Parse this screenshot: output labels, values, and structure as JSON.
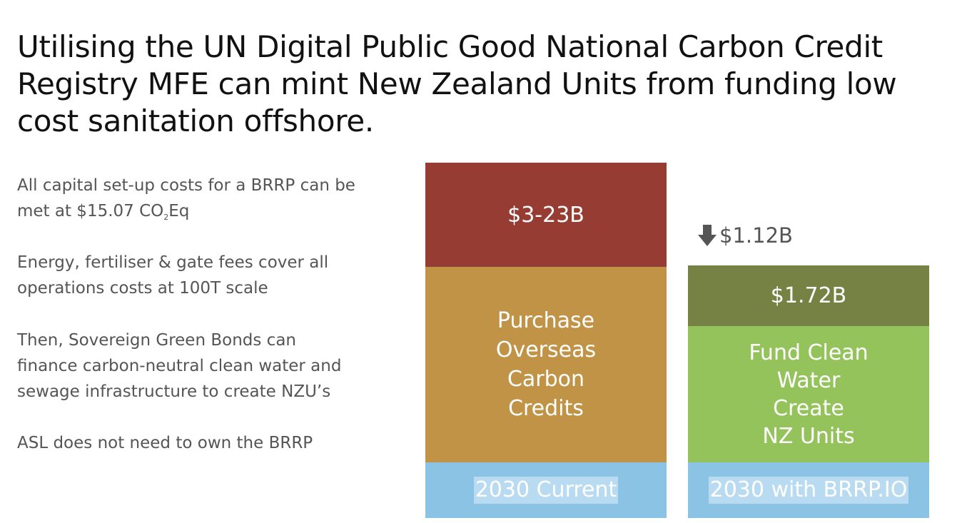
{
  "title": {
    "lines": [
      "Utilising the UN Digital Public Good National Carbon Credit",
      "Registry MFE can mint New Zealand Units from funding low",
      "cost sanitation offshore."
    ]
  },
  "points": {
    "p1": {
      "line1": "All capital set-up costs for a BRRP can be",
      "line2_pre": "met at $15.07 CO",
      "sub": "2",
      "line2_post": "Eq"
    },
    "p2": {
      "line1": "Energy, fertiliser & gate fees cover all",
      "line2": "operations costs at 100T scale"
    },
    "p3": {
      "line1": "Then, Sovereign Green Bonds can",
      "line2": "finance carbon-neutral clean water and",
      "line3": "sewage infrastructure to create NZU’s"
    },
    "p4": {
      "line1": "ASL does not need to own the BRRP"
    }
  },
  "current_column": {
    "top_value": "$3-23B",
    "middle_lines": [
      "Purchase",
      "Overseas",
      "Carbon",
      "Credits"
    ],
    "base_label": "2030 Current"
  },
  "brrp_column": {
    "reduction_arrow": "down-arrow-icon",
    "reduction_value": "$1.12B",
    "top_value": "$1.72B",
    "middle_lines": [
      "Fund Clean",
      "Water",
      "Create",
      "NZ Units"
    ],
    "base_label": "2030 with BRRP.IO"
  },
  "colors": {
    "current_top": "#973c33",
    "current_middle": "#c09347",
    "brrp_top": "#768244",
    "brrp_middle": "#94c35b",
    "base": "#8ac3e3"
  }
}
